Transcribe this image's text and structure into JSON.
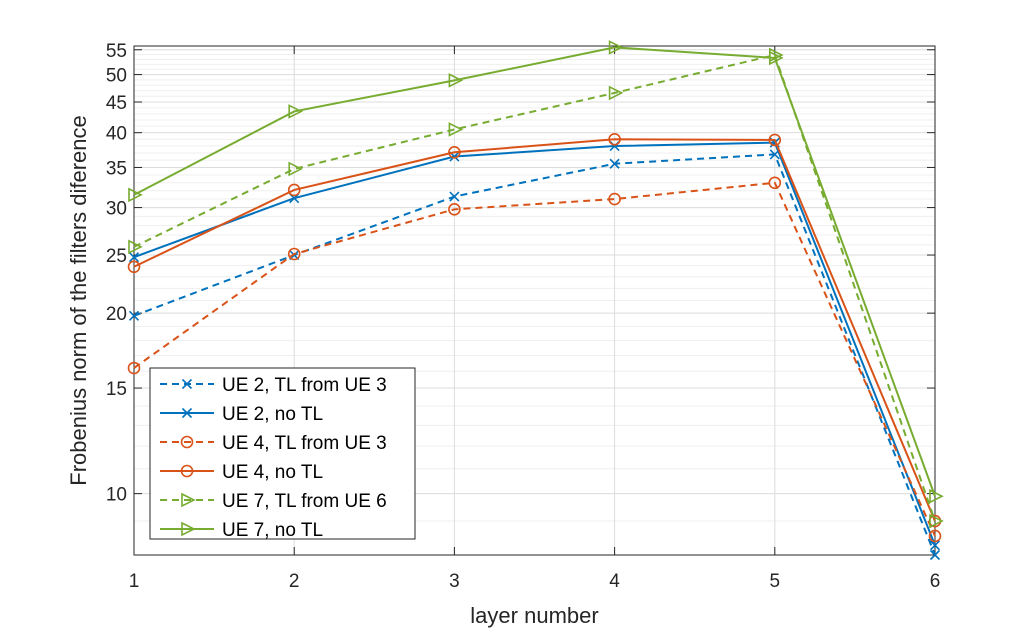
{
  "chart_data": {
    "type": "line",
    "title": "",
    "xlabel": "layer number",
    "ylabel": "Frobenius norm of the filters diference",
    "yscale": "log",
    "grid": true,
    "legend_position": "bottom-left",
    "xlim": [
      1,
      6
    ],
    "ylim": [
      7.9,
      55.8
    ],
    "xticks": [
      1,
      2,
      3,
      4,
      5,
      6
    ],
    "xtick_labels": [
      "1",
      "2",
      "3",
      "4",
      "5",
      "6"
    ],
    "yticks": [
      10,
      15,
      20,
      25,
      30,
      35,
      40,
      45,
      50,
      55
    ],
    "ytick_labels": [
      "10",
      "15",
      "20",
      "25",
      "30",
      "35",
      "40",
      "45",
      "50",
      "55"
    ],
    "x": [
      1,
      2,
      3,
      4,
      5,
      6
    ],
    "series": [
      {
        "name": "UE 2, TL from UE 3",
        "color": "#0072BD",
        "dash": true,
        "marker": "x",
        "values": [
          19.8,
          25.0,
          31.3,
          35.5,
          36.8,
          7.9
        ]
      },
      {
        "name": "UE 2, no TL",
        "color": "#0072BD",
        "dash": false,
        "marker": "x",
        "values": [
          24.8,
          31.1,
          36.5,
          38.0,
          38.5,
          8.2
        ]
      },
      {
        "name": "UE 4, TL from UE 3",
        "color": "#D95319",
        "dash": true,
        "marker": "o",
        "values": [
          16.2,
          25.1,
          29.8,
          31.0,
          33.0,
          8.5
        ]
      },
      {
        "name": "UE 4, no TL",
        "color": "#D95319",
        "dash": false,
        "marker": "o",
        "values": [
          23.9,
          32.1,
          37.1,
          39.0,
          38.9,
          9.0
        ]
      },
      {
        "name": "UE 7, TL from UE 6",
        "color": "#77AC30",
        "dash": true,
        "marker": "triangle-right",
        "values": [
          25.8,
          34.8,
          40.5,
          46.6,
          53.9,
          9.0
        ]
      },
      {
        "name": "UE 7, no TL",
        "color": "#77AC30",
        "dash": false,
        "marker": "triangle-right",
        "values": [
          31.5,
          43.4,
          48.9,
          55.5,
          53.3,
          9.9
        ]
      }
    ]
  }
}
